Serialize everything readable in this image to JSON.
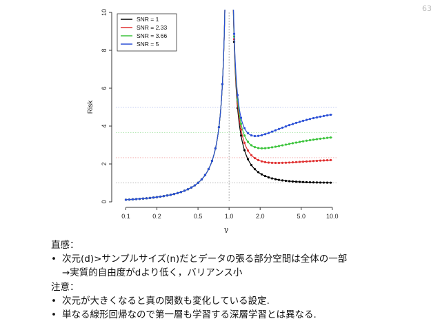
{
  "page": {
    "number": "63"
  },
  "chart_data": {
    "type": "line",
    "xlabel": "γ",
    "ylabel": "Risk",
    "xscale": "log",
    "xlim": [
      0.08,
      11
    ],
    "ylim": [
      0,
      10
    ],
    "x_ticks": [
      0.1,
      0.2,
      0.5,
      1.0,
      2.0,
      5.0,
      10.0
    ],
    "x_tick_labels": [
      "0.1",
      "0.2",
      "0.5",
      "1.0",
      "2.0",
      "5.0",
      "10.0"
    ],
    "y_ticks": [
      0,
      2,
      4,
      6,
      8,
      10
    ],
    "y_tick_labels": [
      "0",
      "2",
      "4",
      "6",
      "8",
      "10"
    ],
    "vline_x": 1.0,
    "hlines": [
      1,
      2.33,
      3.66,
      5
    ],
    "legend_position": "top-left",
    "series": [
      {
        "name": "SNR = 1",
        "snr": 1,
        "color": "#000000"
      },
      {
        "name": "SNR = 2.33",
        "snr": 2.33,
        "color": "#e03030"
      },
      {
        "name": "SNR = 3.66",
        "snr": 3.66,
        "color": "#3cc43c"
      },
      {
        "name": "SNR = 5",
        "snr": 5,
        "color": "#2a4fd6"
      }
    ]
  },
  "text": {
    "block1_heading": "直感：",
    "block1_bullet_line1": "次元(d)>サンプルサイズ(n)だとデータの張る部分空間は全体の一部",
    "block1_bullet_line2": "→実質的自由度がdより低く，バリアンス小",
    "block2_heading": "注意：",
    "block2_bullet1": "次元が大きくなると真の関数も変化している設定.",
    "block2_bullet2": "単なる線形回帰なので第一層も学習する深層学習とは異なる.",
    "bullet_symbol": "•"
  }
}
